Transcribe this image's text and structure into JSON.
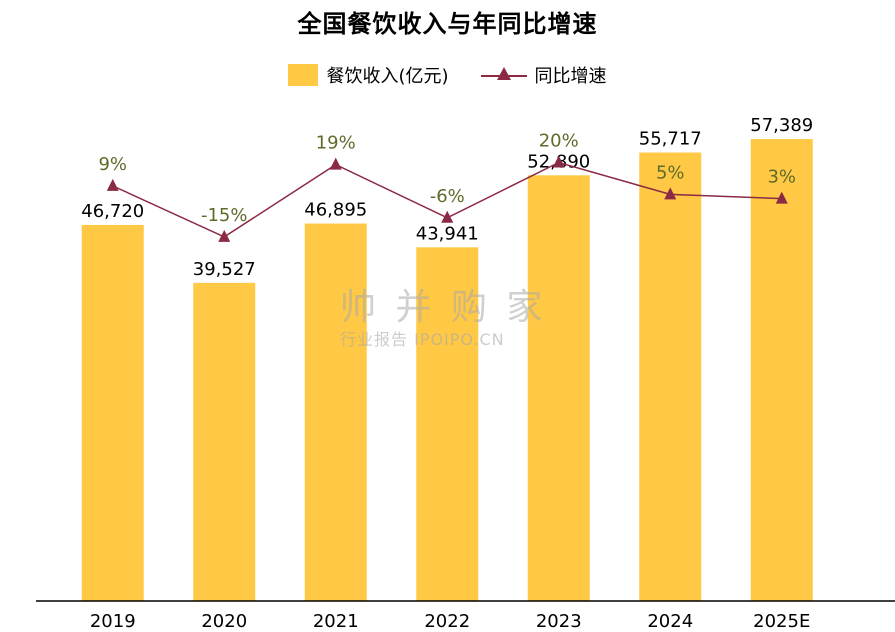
{
  "chart_data": {
    "type": "bar",
    "title": "全国餐饮收入与年同比增速",
    "categories": [
      "2019",
      "2020",
      "2021",
      "2022",
      "2023",
      "2024",
      "2025E"
    ],
    "series": [
      {
        "name": "餐饮收入(亿元)",
        "type": "bar",
        "values": [
          46720,
          39527,
          46895,
          43941,
          52890,
          55717,
          57389
        ],
        "labels": [
          "46,720",
          "39,527",
          "46,895",
          "43,941",
          "52,890",
          "55,717",
          "57,389"
        ],
        "color": "#FFC845"
      },
      {
        "name": "同比增速",
        "type": "line",
        "values": [
          9,
          -15,
          19,
          -6,
          20,
          5,
          3
        ],
        "labels": [
          "9%",
          "-15%",
          "19%",
          "-6%",
          "20%",
          "5%",
          "3%"
        ],
        "color": "#8B2A45",
        "label_color": "#5E6B2A"
      }
    ],
    "ylim": [
      0,
      61000
    ],
    "y2lim": [
      -40,
      40
    ],
    "legend": "top-center",
    "grid": false
  },
  "watermark": {
    "main": "帅 并 购 家",
    "sub": "行业报告 IPOIPO.CN"
  }
}
